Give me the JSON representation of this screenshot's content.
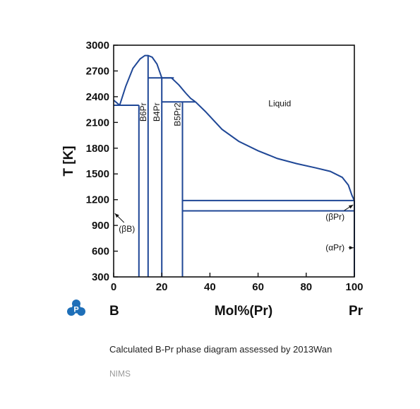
{
  "chart_data": {
    "type": "line",
    "title": "",
    "xlabel": "Mol%(Pr)",
    "ylabel": "T [K]",
    "xlim": [
      0,
      100
    ],
    "ylim": [
      300,
      3000
    ],
    "xticks": [
      0,
      20,
      40,
      60,
      80,
      100
    ],
    "yticks": [
      300,
      600,
      900,
      1200,
      1500,
      1800,
      2100,
      2400,
      2700,
      3000
    ],
    "left_component": "B",
    "right_component": "Pr",
    "grid": false,
    "liquidus": [
      {
        "x": [
          0,
          2.5
        ],
        "y": [
          2360,
          2300
        ]
      },
      {
        "x": [
          2.5,
          5,
          8,
          11,
          13,
          14.3,
          16,
          18,
          20
        ],
        "y": [
          2300,
          2520,
          2730,
          2840,
          2880,
          2880,
          2860,
          2780,
          2620
        ]
      },
      {
        "x": [
          20,
          24,
          27,
          30
        ],
        "y": [
          2620,
          2620,
          2540,
          2440
        ]
      },
      {
        "x": [
          30,
          32,
          34
        ],
        "y": [
          2440,
          2380,
          2340
        ]
      },
      {
        "x": [
          34,
          38,
          45,
          52,
          60,
          68,
          76,
          84,
          90,
          95,
          97.5,
          99,
          100
        ],
        "y": [
          2340,
          2230,
          2020,
          1880,
          1770,
          1680,
          1620,
          1570,
          1530,
          1460,
          1370,
          1250,
          1190
        ]
      }
    ],
    "invariants": [
      {
        "temperature": 2300,
        "x_range": [
          0,
          10.5
        ]
      },
      {
        "temperature": 2620,
        "x_range": [
          14.3,
          25
        ]
      },
      {
        "temperature": 2340,
        "x_range": [
          20,
          34
        ]
      },
      {
        "temperature": 1190,
        "x_range": [
          28.6,
          100
        ]
      },
      {
        "temperature": 1070,
        "x_range": [
          28.6,
          100
        ]
      }
    ],
    "compounds": [
      {
        "name": "B6Pr",
        "x": 14.3
      },
      {
        "name": "B4Pr",
        "x": 20
      },
      {
        "name": "B5Pr2",
        "x": 28.6
      }
    ],
    "boundaries": [
      {
        "x": [
          10.5,
          10.5
        ],
        "y": [
          300,
          2300
        ]
      },
      {
        "x": [
          14.3,
          14.3
        ],
        "y": [
          300,
          2880
        ]
      },
      {
        "x": [
          20,
          20
        ],
        "y": [
          300,
          2620
        ]
      },
      {
        "x": [
          28.6,
          28.6
        ],
        "y": [
          300,
          2340
        ]
      },
      {
        "x": [
          100,
          100
        ],
        "y": [
          300,
          1190
        ]
      }
    ],
    "annotations": [
      {
        "text": "Liquid",
        "x": 69,
        "y": 2320
      },
      {
        "text": "(βB)",
        "x": 5.5,
        "y": 860,
        "arrow_to": [
          0.5,
          1040
        ]
      },
      {
        "text": "(βPr)",
        "x": 92,
        "y": 1000,
        "arrow_to": [
          99.5,
          1140
        ]
      },
      {
        "text": "(αPr)",
        "x": 92,
        "y": 640,
        "arrow_to": [
          99.7,
          640
        ]
      }
    ]
  },
  "caption": "Calculated B-Pr phase diagram assessed by 2013Wan",
  "source": "NIMS",
  "logo_letter": "P",
  "colors": {
    "curve": "#1f4796",
    "logo": "#1e6fb8",
    "axis": "#111111"
  }
}
